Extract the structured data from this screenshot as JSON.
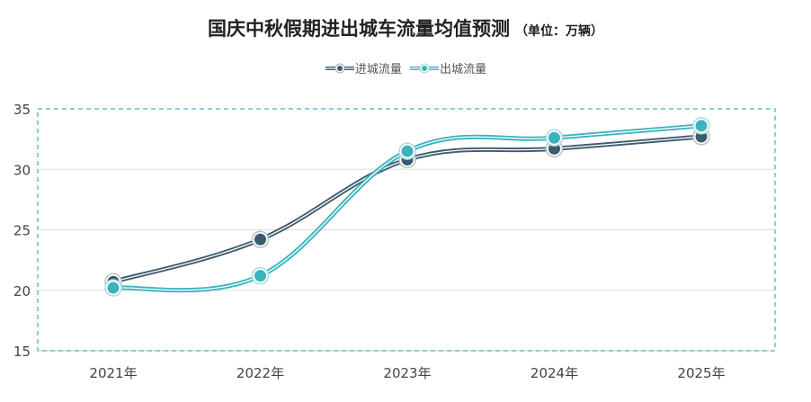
{
  "chart_data": {
    "type": "line",
    "title": "国庆中秋假期进出城车流量均值预测",
    "subtitle": "（单位：万辆）",
    "categories": [
      "2021年",
      "2022年",
      "2023年",
      "2024年",
      "2025年"
    ],
    "series": [
      {
        "name": "进城流量",
        "color": "#3d5a6c",
        "values": [
          20.7,
          24.2,
          30.8,
          31.7,
          32.7
        ]
      },
      {
        "name": "出城流量",
        "color": "#3bb3bd",
        "values": [
          20.2,
          21.2,
          31.5,
          32.6,
          33.6
        ]
      }
    ],
    "yticks": [
      "15",
      "20",
      "25",
      "30",
      "35"
    ],
    "ylim": [
      15,
      35
    ],
    "grid": true,
    "legend_position": "top-center",
    "xlabel": "",
    "ylabel": ""
  }
}
